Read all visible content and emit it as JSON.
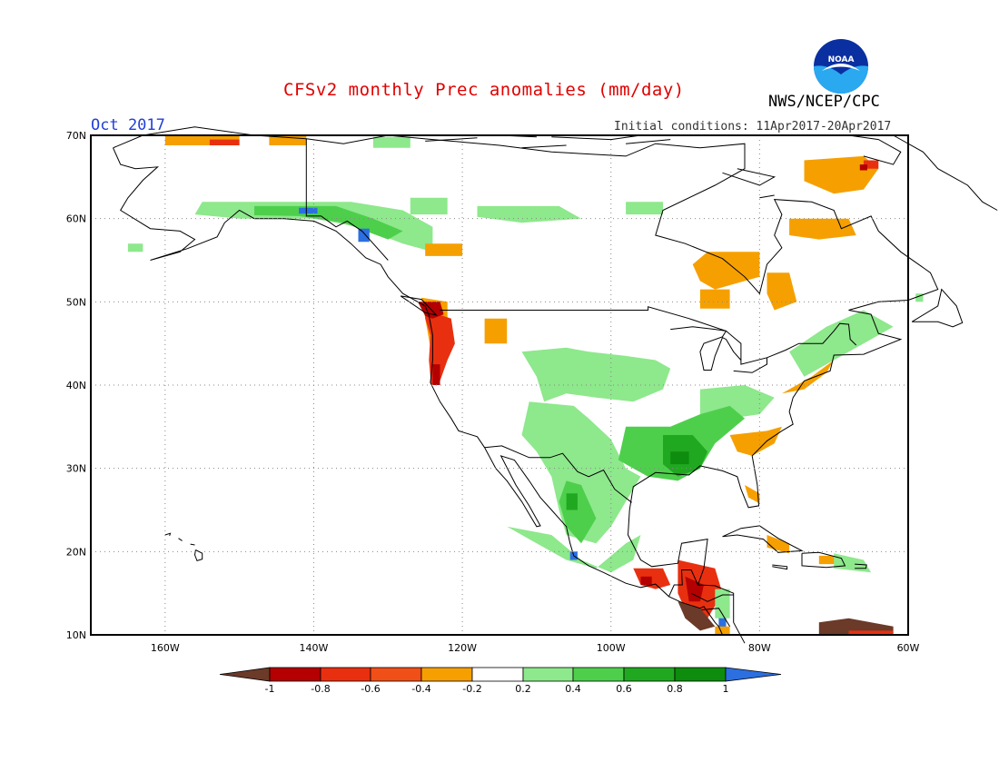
{
  "header": {
    "title": "CFSv2 monthly Prec anomalies (mm/day)",
    "month": "Oct 2017",
    "initial_conditions": "Initial conditions: 11Apr2017-20Apr2017",
    "agency": "NWS/NCEP/CPC",
    "logo_text": "NOAA"
  },
  "map": {
    "lat_labels": [
      "70N",
      "60N",
      "50N",
      "40N",
      "30N",
      "20N",
      "10N"
    ],
    "lon_labels": [
      "160W",
      "140W",
      "120W",
      "100W",
      "80W",
      "60W"
    ],
    "lon_range": [
      -170,
      -60
    ],
    "lat_range": [
      10,
      70
    ]
  },
  "colorbar": {
    "labels": [
      "-1",
      "-0.8",
      "-0.6",
      "-0.4",
      "-0.2",
      "0.2",
      "0.4",
      "0.6",
      "0.8",
      "1"
    ],
    "colors": [
      "#6b3a28",
      "#b40000",
      "#e83010",
      "#f04f18",
      "#f5a000",
      "#ffffff",
      "#8ee88c",
      "#4ecf4c",
      "#20a820",
      "#0e8c0e",
      "#2b6fe0"
    ]
  }
}
